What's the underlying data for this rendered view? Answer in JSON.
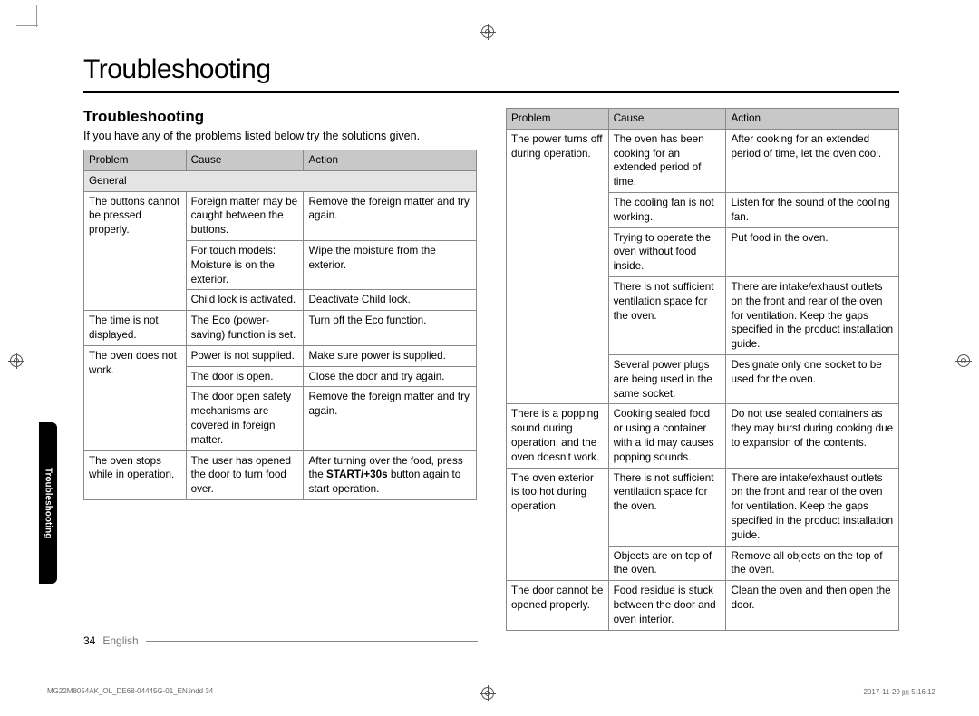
{
  "page": {
    "title": "Troubleshooting",
    "section_heading": "Troubleshooting",
    "intro": "If you have any of the problems listed below try the solutions given.",
    "side_tab": "Troubleshooting",
    "page_number": "34",
    "language": "English",
    "meta_left": "MG22M8054AK_OL_DE68-04445G-01_EN.indd   34",
    "meta_right": "2017-11-29   ㏘ 5:16:12"
  },
  "headers": {
    "problem": "Problem",
    "cause": "Cause",
    "action": "Action"
  },
  "left_table": {
    "subhead": "General",
    "rows": [
      {
        "problem": "The buttons cannot be pressed properly.",
        "problem_rowspan": 3,
        "cause": "Foreign matter may be caught between the buttons.",
        "action": "Remove the foreign matter and try again."
      },
      {
        "cause": "For touch models: Moisture is on the exterior.",
        "action": "Wipe the moisture from the exterior."
      },
      {
        "cause": "Child lock is activated.",
        "action": "Deactivate Child lock."
      },
      {
        "problem": "The time is not displayed.",
        "cause": "The Eco (power-saving) function is set.",
        "action": "Turn off the Eco function."
      },
      {
        "problem": "The oven does not work.",
        "problem_rowspan": 3,
        "cause": "Power is not supplied.",
        "action": "Make sure power is supplied."
      },
      {
        "cause": "The door is open.",
        "action": "Close the door and try again."
      },
      {
        "cause": "The door open safety mechanisms are covered in foreign matter.",
        "action": "Remove the foreign matter and try again."
      },
      {
        "problem": "The oven stops while in operation.",
        "cause": "The user has opened the door to turn food over.",
        "action_html": "After turning over the food, press the <span class=\"bold\">START/+30s</span> button again to start operation."
      }
    ]
  },
  "right_table": {
    "rows": [
      {
        "problem": "The power turns off during operation.",
        "problem_rowspan": 5,
        "cause": "The oven has been cooking for an extended period of time.",
        "action": "After cooking for an extended period of time, let the oven cool."
      },
      {
        "cause": "The cooling fan is not working.",
        "action": "Listen for the sound of the cooling fan."
      },
      {
        "cause": "Trying to operate the oven without food inside.",
        "action": "Put food in the oven."
      },
      {
        "cause": "There is not sufficient ventilation space for the oven.",
        "action": "There are intake/exhaust outlets on the front and rear of the oven for ventilation. Keep the gaps specified in the product installation guide."
      },
      {
        "cause": "Several power plugs are being used in the same socket.",
        "action": "Designate only one socket to be used for the oven."
      },
      {
        "problem": "There is a popping sound during operation, and the oven doesn't work.",
        "cause": "Cooking sealed food or using a container with a lid may causes popping sounds.",
        "action": "Do not use sealed containers as they may burst during cooking due to expansion of the contents."
      },
      {
        "problem": "The oven exterior is too hot during operation.",
        "problem_rowspan": 2,
        "cause": "There is not sufficient ventilation space for the oven.",
        "action": "There are intake/exhaust outlets on the front and rear of the oven for ventilation. Keep the gaps specified in the product installation guide."
      },
      {
        "cause": "Objects are on top of the oven.",
        "action": "Remove all objects on the top of the oven."
      },
      {
        "problem": "The door cannot be opened properly.",
        "cause": "Food residue is stuck between the door and oven interior.",
        "action": "Clean the oven and then open the door."
      }
    ]
  }
}
